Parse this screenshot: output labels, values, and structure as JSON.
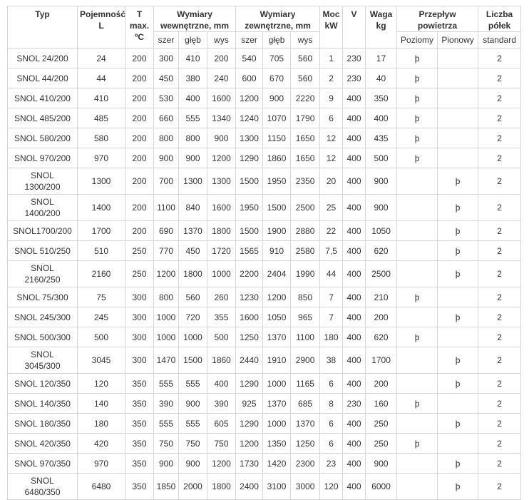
{
  "table": {
    "header": {
      "top": [
        "Typ",
        "Pojemność L",
        "T max. ºC",
        "Wymiary wewnętrzne, mm",
        "Wymiary zewnętrzne, mm",
        "Moc kW",
        "V",
        "Waga kg",
        "Przepływ powietrza",
        "Liczba półek"
      ],
      "sub": [
        "szer",
        "głęb",
        "wys",
        "szer",
        "głęb",
        "wys",
        "Poziomy",
        "Pionowy",
        "standard"
      ]
    },
    "rows": [
      [
        "SNOL 24/200",
        "24",
        "200",
        "300",
        "410",
        "200",
        "540",
        "705",
        "560",
        "1",
        "230",
        "17",
        "þ",
        null,
        "2"
      ],
      [
        "SNOL 44/200",
        "44",
        "200",
        "450",
        "380",
        "240",
        "600",
        "670",
        "560",
        "2",
        "230",
        "40",
        "þ",
        null,
        "2"
      ],
      [
        "SNOL 410/200",
        "410",
        "200",
        "530",
        "400",
        "1600",
        "1200",
        "900",
        "2220",
        "9",
        "400",
        "350",
        "þ",
        null,
        "2"
      ],
      [
        "SNOL 485/200",
        "485",
        "200",
        "660",
        "555",
        "1340",
        "1240",
        "1070",
        "1790",
        "6",
        "400",
        "400",
        "þ",
        null,
        "2"
      ],
      [
        "SNOL 580/200",
        "580",
        "200",
        "800",
        "800",
        "900",
        "1300",
        "1150",
        "1650",
        "12",
        "400",
        "435",
        "þ",
        null,
        "2"
      ],
      [
        "SNOL 970/200",
        "970",
        "200",
        "900",
        "900",
        "1200",
        "1290",
        "1860",
        "1650",
        "12",
        "400",
        "500",
        "þ",
        null,
        "2"
      ],
      [
        "SNOL 1300/200",
        "1300",
        "200",
        "700",
        "1300",
        "1300",
        "1500",
        "1950",
        "2350",
        "20",
        "400",
        "900",
        null,
        "þ",
        "2"
      ],
      [
        "SNOL 1400/200",
        "1400",
        "200",
        "1100",
        "840",
        "1600",
        "1950",
        "1500",
        "2500",
        "25",
        "400",
        "900",
        null,
        "þ",
        "2"
      ],
      [
        "SNOL1700/200",
        "1700",
        "200",
        "690",
        "1370",
        "1800",
        "1500",
        "1900",
        "2880",
        "22",
        "400",
        "1050",
        null,
        "þ",
        "2"
      ],
      [
        "SNOL 510/250",
        "510",
        "250",
        "770",
        "450",
        "1720",
        "1565",
        "910",
        "2580",
        "7,5",
        "400",
        "620",
        null,
        "þ",
        "2"
      ],
      [
        "SNOL 2160/250",
        "2160",
        "250",
        "1200",
        "1800",
        "1000",
        "2200",
        "2404",
        "1990",
        "44",
        "400",
        "2500",
        null,
        "þ",
        "2"
      ],
      [
        "SNOL 75/300",
        "75",
        "300",
        "800",
        "560",
        "260",
        "1230",
        "1200",
        "850",
        "7",
        "400",
        "210",
        "þ",
        null,
        "2"
      ],
      [
        "SNOL 245/300",
        "245",
        "300",
        "1000",
        "720",
        "355",
        "1600",
        "1050",
        "965",
        "7",
        "400",
        "200",
        null,
        "þ",
        "2"
      ],
      [
        "SNOL 500/300",
        "500",
        "300",
        "1000",
        "1000",
        "500",
        "1250",
        "1370",
        "1100",
        "180",
        "400",
        "620",
        "þ",
        null,
        "2"
      ],
      [
        "SNOL 3045/300",
        "3045",
        "300",
        "1470",
        "1500",
        "1860",
        "2440",
        "1910",
        "2900",
        "38",
        "400",
        "1700",
        null,
        "þ",
        "2"
      ],
      [
        "SNOL 120/350",
        "120",
        "350",
        "555",
        "555",
        "400",
        "1290",
        "1000",
        "1165",
        "6",
        "400",
        "200",
        null,
        "þ",
        "2"
      ],
      [
        "SNOL 140/350",
        "140",
        "350",
        "390",
        "900",
        "390",
        "925",
        "1370",
        "685",
        "8",
        "230",
        "160",
        "þ",
        null,
        "2"
      ],
      [
        "SNOL 180/350",
        "180",
        "350",
        "555",
        "555",
        "605",
        "1290",
        "1000",
        "1370",
        "6",
        "400",
        "250",
        null,
        "þ",
        "2"
      ],
      [
        "SNOL 420/350",
        "420",
        "350",
        "750",
        "750",
        "750",
        "1200",
        "1350",
        "1250",
        "6",
        "400",
        "250",
        "þ",
        null,
        "2"
      ],
      [
        "SNOL 970/350",
        "970",
        "350",
        "900",
        "900",
        "1200",
        "1730",
        "1420",
        "2300",
        "23",
        "400",
        "900",
        null,
        "þ",
        "2"
      ],
      [
        "SNOL 6480/350",
        "6480",
        "350",
        "1850",
        "2000",
        "1800",
        "2400",
        "3100",
        "3000",
        "120",
        "400",
        "6000",
        null,
        "þ",
        "2"
      ]
    ]
  }
}
